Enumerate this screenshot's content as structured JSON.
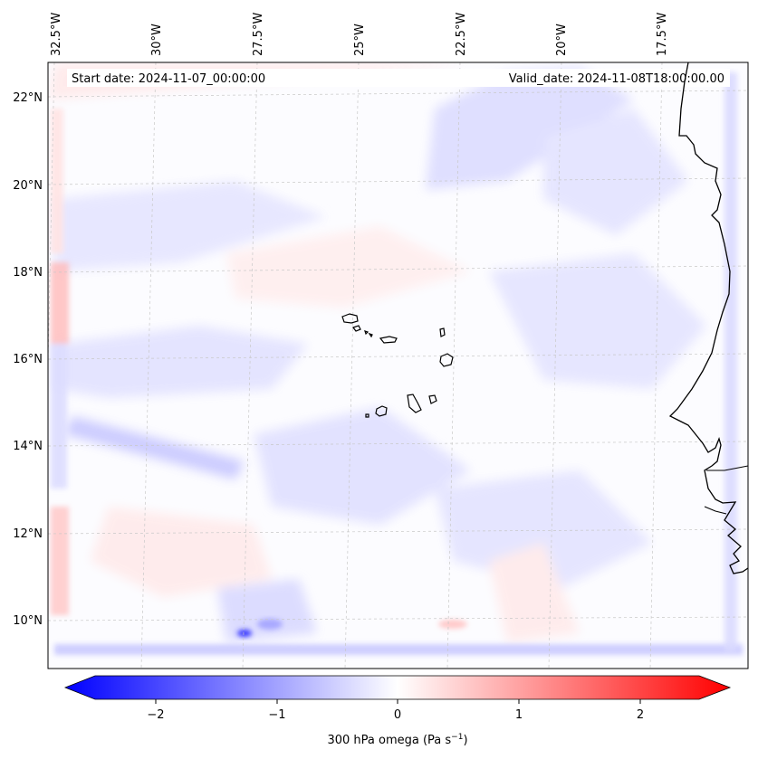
{
  "map": {
    "header": {
      "start_date": "Start date: 2024-11-07_00:00:00",
      "valid_date": "Valid_date: 2024-11-08T18:00:00.00"
    },
    "longitude_labels": [
      "32.5°W",
      "30°W",
      "27.5°W",
      "25°W",
      "22.5°W",
      "20°W",
      "17.5°W"
    ],
    "latitude_labels": [
      "22°N",
      "20°N",
      "18°N",
      "16°N",
      "14°N",
      "12°N",
      "10°N"
    ],
    "colorbar": {
      "label_prefix": "300 hPa omega (Pa s",
      "label_exponent": "−1",
      "label_suffix": ")",
      "tick_labels": [
        "−2",
        "−1",
        "0",
        "1",
        "2"
      ],
      "min": -2.75,
      "max": 2.75,
      "colors": {
        "negative": "#0000ff",
        "zero": "#ffffff",
        "positive": "#ff0000"
      }
    },
    "colors": {
      "coastline": "#000000",
      "gridline": "#c8c8c8",
      "light_blue": "#e6e6ff",
      "mid_blue": "#c9c9ff",
      "light_red": "#ffe6e6",
      "mid_red": "#ffcaca"
    }
  }
}
